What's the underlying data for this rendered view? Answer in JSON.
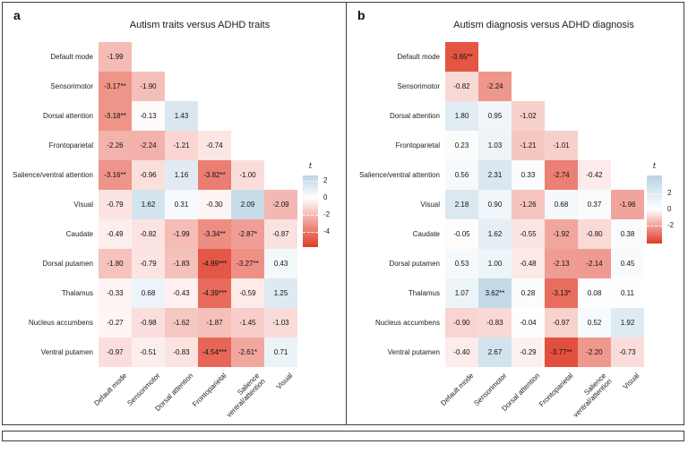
{
  "figure": {
    "frame_color": "#3f3f3f",
    "background": "#ffffff"
  },
  "chart_data": [
    {
      "type": "heatmap",
      "panel_label": "a",
      "title": "Autism traits versus ADHD traits",
      "row_labels": [
        "Default mode",
        "Sensorimotor",
        "Dorsal attention",
        "Frontoparietal",
        "Salience/ventral attention",
        "Visual",
        "Caudate",
        "Dorsal putamen",
        "Thalamus",
        "Nucleus accumbens",
        "Ventral putamen"
      ],
      "col_labels": [
        [
          "Default mode"
        ],
        [
          "Sensorimotor"
        ],
        [
          "Dorsal attention"
        ],
        [
          "Frontoparietal"
        ],
        [
          "Salience",
          "ventral/attention"
        ],
        [
          "Visual"
        ]
      ],
      "cell_labels": [
        [
          "-1.99"
        ],
        [
          "-3.17**",
          "-1.90"
        ],
        [
          "-3.18**",
          "-0.13",
          "1.43"
        ],
        [
          "-2.26",
          "-2.24",
          "-1.21",
          "-0.74"
        ],
        [
          "-3.16**",
          "-0.96",
          "1.16",
          "-3.82**",
          "-1.00"
        ],
        [
          "-0.79",
          "1.62",
          "0.31",
          "-0.30",
          "2.09",
          "-2.09"
        ],
        [
          "-0.49",
          "-0.82",
          "-1.99",
          "-3.34**",
          "-2.87*",
          "-0.87"
        ],
        [
          "-1.80",
          "-0.79",
          "-1.83",
          "-4.99***",
          "-3.27**",
          "0.43"
        ],
        [
          "-0.33",
          "0.68",
          "-0.43",
          "-4.39***",
          "-0.59",
          "1.25"
        ],
        [
          "-0.27",
          "-0.98",
          "-1.62",
          "-1.87",
          "-1.45",
          "-1.03"
        ],
        [
          "-0.97",
          "-0.51",
          "-0.83",
          "-4.54***",
          "-2.61*",
          "0.71"
        ]
      ],
      "colorbar": {
        "label": "t",
        "ticks": [
          2,
          0,
          -2,
          -4
        ],
        "vmax": 2.6,
        "vmin": -5.8
      },
      "colors": {
        "negative": "#e03b28",
        "positive": "#b9d3e3",
        "zero": "#ffffff"
      }
    },
    {
      "type": "heatmap",
      "panel_label": "b",
      "title": "Autism diagnosis versus ADHD diagnosis",
      "row_labels": [
        "Default mode",
        "Sensorimotor",
        "Dorsal attention",
        "Frontoparietal",
        "Salience/ventral attention",
        "Visual",
        "Caudate",
        "Dorsal putamen",
        "Thalamus",
        "Nucleus accumbens",
        "Ventral putamen"
      ],
      "col_labels": [
        [
          "Default mode"
        ],
        [
          "Sensorimotor"
        ],
        [
          "Dorsal attention"
        ],
        [
          "Frontoparietal"
        ],
        [
          "Salience",
          "ventral/attention"
        ],
        [
          "Visual"
        ]
      ],
      "cell_labels": [
        [
          "-3.65**"
        ],
        [
          "-0.82",
          "-2.24"
        ],
        [
          "1.80",
          "0.95",
          "-1.02"
        ],
        [
          "0.23",
          "1.03",
          "-1.21",
          "-1.01"
        ],
        [
          "0.56",
          "2.31",
          "0.33",
          "-2.74",
          "-0.42"
        ],
        [
          "2.18",
          "0.90",
          "-1.26",
          "0.68",
          "0.37",
          "-1.96"
        ],
        [
          "-0.05",
          "1.62",
          "-0.55",
          "-1.92",
          "-0.80",
          "0.38"
        ],
        [
          "0.53",
          "1.00",
          "-0.48",
          "-2.13",
          "-2.14",
          "0.45"
        ],
        [
          "1.07",
          "3.62**",
          "0.28",
          "-3.13*",
          "0.08",
          "0.11"
        ],
        [
          "-0.90",
          "-0.83",
          "-0.04",
          "-0.97",
          "0.52",
          "1.92"
        ],
        [
          "-0.40",
          "2.67",
          "-0.29",
          "-3.77**",
          "-2.20",
          "-0.73"
        ]
      ],
      "colorbar": {
        "label": "t",
        "ticks": [
          2,
          0,
          -2
        ],
        "vmax": 4.2,
        "vmin": -4.2
      },
      "colors": {
        "negative": "#e03b28",
        "positive": "#b9d3e3",
        "zero": "#ffffff"
      }
    }
  ]
}
